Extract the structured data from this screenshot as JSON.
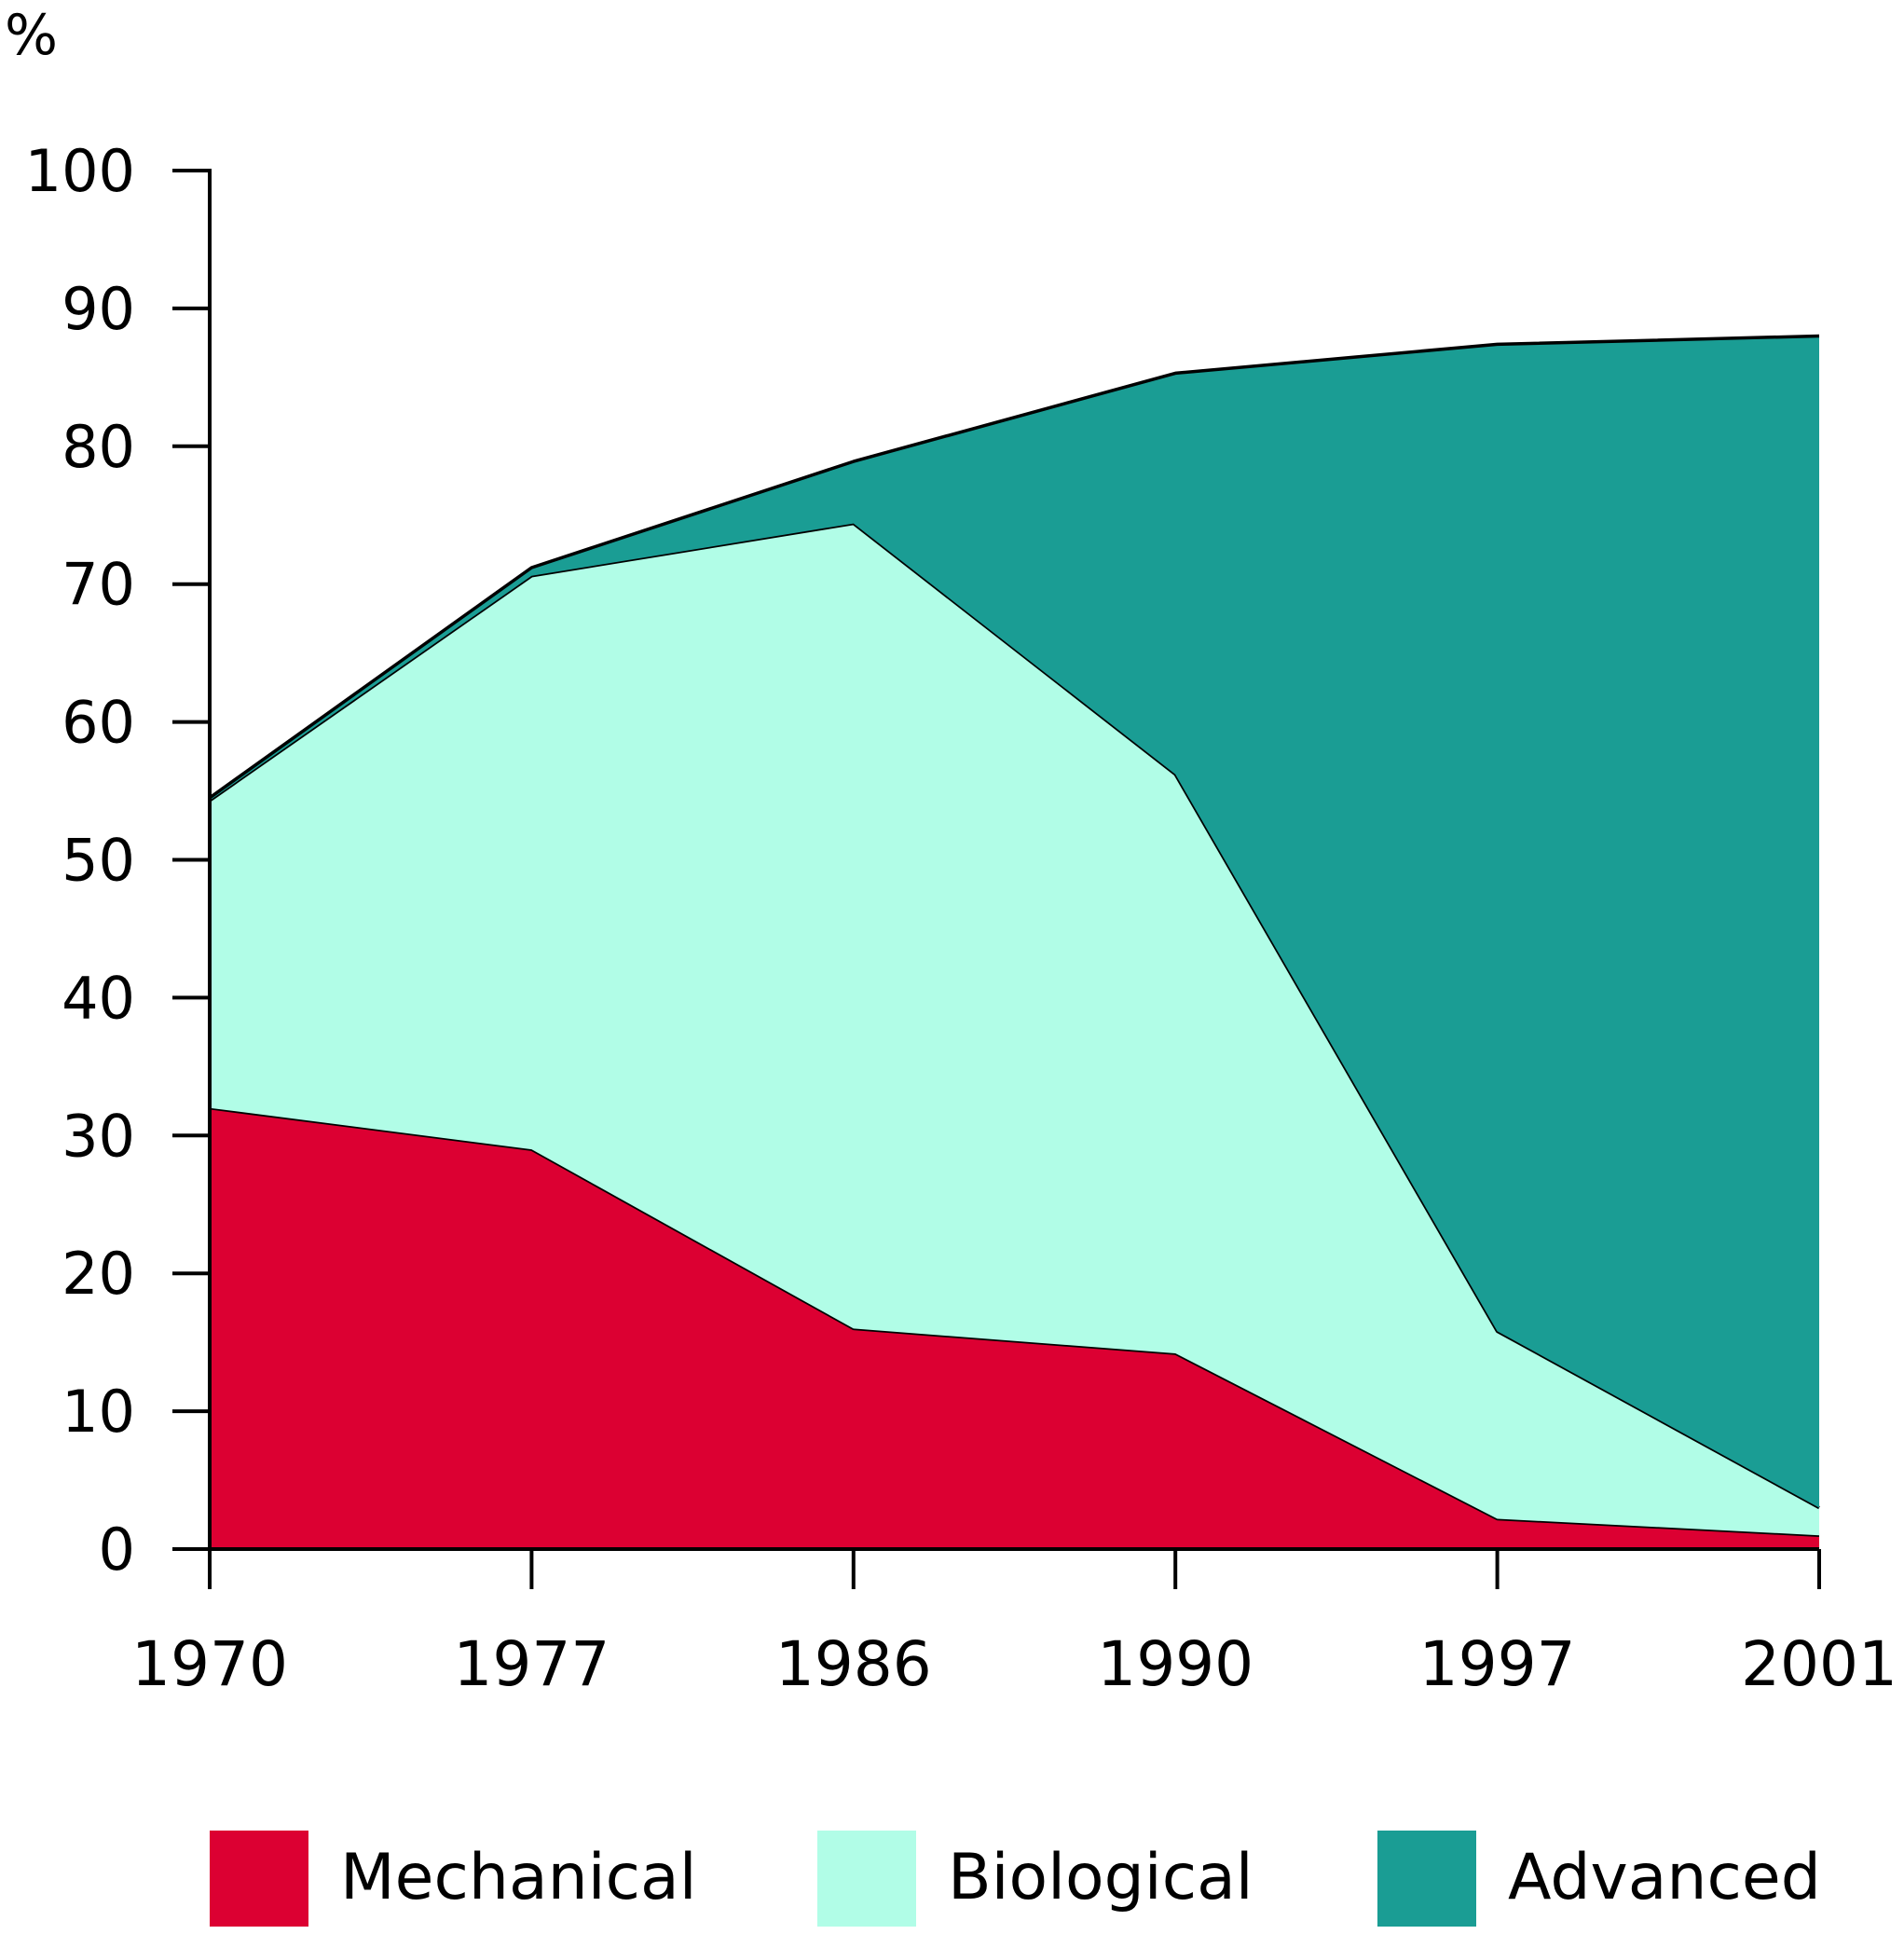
{
  "chart_data": {
    "type": "area",
    "stacked": true,
    "unit_label": "%",
    "title": "",
    "xlabel": "",
    "ylabel": "",
    "categories": [
      "1970",
      "1977",
      "1986",
      "1990",
      "1997",
      "2001"
    ],
    "ylim": [
      0,
      100
    ],
    "yticks": [
      0,
      10,
      20,
      30,
      40,
      50,
      60,
      70,
      80,
      90,
      100
    ],
    "grid": false,
    "legend_position": "bottom",
    "series": [
      {
        "name": "Mechanical",
        "color": "#dc0032",
        "values": [
          32,
          29,
          16,
          14.2,
          2.2,
          1
        ]
      },
      {
        "name": "Biological",
        "color": "#b1fde7",
        "values": [
          22.3,
          41.6,
          58.4,
          42,
          13.6,
          2
        ]
      },
      {
        "name": "Advanced",
        "color": "#1a9d94",
        "values": [
          0.2,
          0.6,
          4.5,
          29.1,
          71.6,
          85
        ]
      }
    ]
  }
}
